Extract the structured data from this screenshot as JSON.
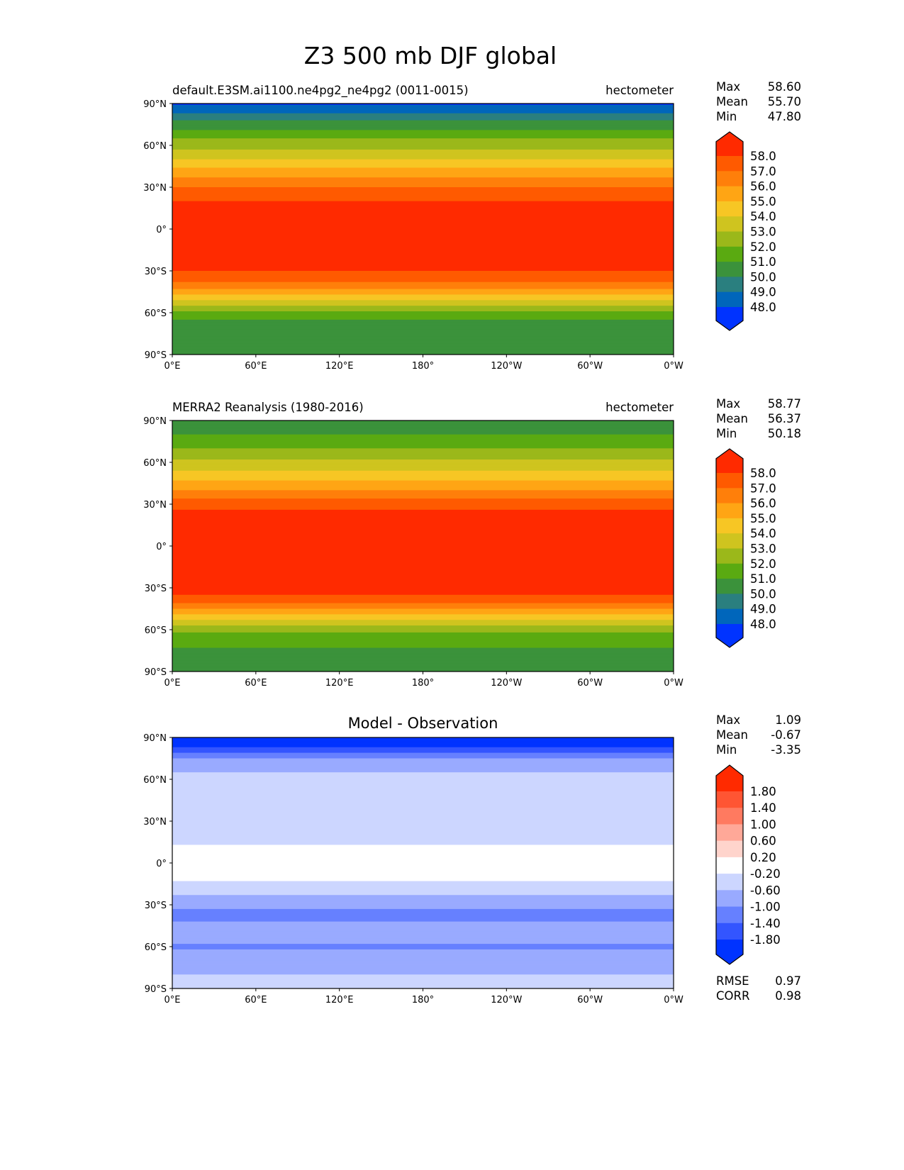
{
  "title": "Z3 500 mb DJF global",
  "chart_data": [
    {
      "type": "heatmap",
      "panel": "model",
      "title_left": "default.E3SM.ai1100.ne4pg2_ne4pg2 (0011-0015)",
      "title_right": "hectometer",
      "stats": [
        {
          "label": "Max",
          "value": "58.60"
        },
        {
          "label": "Mean",
          "value": "55.70"
        },
        {
          "label": "Min",
          "value": "47.80"
        }
      ],
      "levels": [
        "58.0",
        "57.0",
        "56.0",
        "55.0",
        "54.0",
        "53.0",
        "52.0",
        "51.0",
        "50.0",
        "49.0",
        "48.0"
      ],
      "level_values": [
        58,
        57,
        56,
        55,
        54,
        53,
        52,
        51,
        50,
        49,
        48
      ],
      "colors": [
        "#ff2a00",
        "#ff5a00",
        "#ff7f0a",
        "#ffa514",
        "#f7c624",
        "#cfc41f",
        "#9bb81a",
        "#5aaa11",
        "#3b923b",
        "#2a7f7f",
        "#0066bb",
        "#0033ff"
      ],
      "lats": [
        90,
        85,
        80,
        75,
        70,
        65,
        60,
        55,
        50,
        45,
        40,
        35,
        30,
        25,
        20,
        15,
        10,
        5,
        0,
        -5,
        -10,
        -15,
        -20,
        -25,
        -30,
        -35,
        -40,
        -45,
        -50,
        -55,
        -60,
        -65,
        -70,
        -75,
        -80,
        -85,
        -90
      ],
      "zonal_values": [
        47.9,
        48.5,
        49.5,
        50.5,
        51.2,
        52.0,
        52.6,
        53.3,
        54.0,
        54.8,
        55.5,
        56.3,
        57.0,
        57.6,
        58.0,
        58.3,
        58.4,
        58.3,
        58.3,
        58.3,
        58.3,
        58.3,
        58.3,
        58.3,
        58.0,
        57.5,
        56.5,
        55.5,
        54.3,
        53.0,
        51.8,
        51.0,
        50.6,
        50.4,
        50.3,
        50.2,
        50.2
      ]
    },
    {
      "type": "heatmap",
      "panel": "observation",
      "title_left": "MERRA2 Reanalysis (1980-2016)",
      "title_right": "hectometer",
      "stats": [
        {
          "label": "Max",
          "value": "58.77"
        },
        {
          "label": "Mean",
          "value": "56.37"
        },
        {
          "label": "Min",
          "value": "50.18"
        }
      ],
      "levels": [
        "58.0",
        "57.0",
        "56.0",
        "55.0",
        "54.0",
        "53.0",
        "52.0",
        "51.0",
        "50.0",
        "49.0",
        "48.0"
      ],
      "level_values": [
        58,
        57,
        56,
        55,
        54,
        53,
        52,
        51,
        50,
        49,
        48
      ],
      "colors": [
        "#ff2a00",
        "#ff5a00",
        "#ff7f0a",
        "#ffa514",
        "#f7c624",
        "#cfc41f",
        "#9bb81a",
        "#5aaa11",
        "#3b923b",
        "#2a7f7f",
        "#0066bb",
        "#0033ff"
      ],
      "lats": [
        90,
        85,
        80,
        75,
        70,
        65,
        60,
        55,
        50,
        45,
        40,
        35,
        30,
        25,
        20,
        15,
        10,
        5,
        0,
        -5,
        -10,
        -15,
        -20,
        -25,
        -30,
        -35,
        -40,
        -45,
        -50,
        -55,
        -60,
        -65,
        -70,
        -75,
        -80,
        -85,
        -90
      ],
      "zonal_values": [
        50.5,
        50.6,
        51.0,
        51.5,
        52.0,
        52.6,
        53.2,
        53.9,
        54.6,
        55.3,
        56.0,
        56.8,
        57.5,
        58.1,
        58.5,
        58.5,
        58.5,
        58.5,
        58.5,
        58.5,
        58.5,
        58.5,
        58.5,
        58.5,
        58.5,
        58.0,
        57.2,
        56.0,
        54.8,
        53.5,
        52.3,
        51.5,
        51.2,
        50.8,
        50.5,
        50.3,
        50.3
      ]
    },
    {
      "type": "heatmap",
      "panel": "difference",
      "title_center": "Model - Observation",
      "stats": [
        {
          "label": "Max",
          "value": "1.09"
        },
        {
          "label": "Mean",
          "value": "-0.67"
        },
        {
          "label": "Min",
          "value": "-3.35"
        }
      ],
      "extra_stats": [
        {
          "label": "RMSE",
          "value": "0.97"
        },
        {
          "label": "CORR",
          "value": "0.98"
        }
      ],
      "levels": [
        "1.80",
        "1.40",
        "1.00",
        "0.60",
        "0.20",
        "-0.20",
        "-0.60",
        "-1.00",
        "-1.40",
        "-1.80"
      ],
      "level_values": [
        1.8,
        1.4,
        1.0,
        0.6,
        0.2,
        -0.2,
        -0.6,
        -1.0,
        -1.4,
        -1.8
      ],
      "colors": [
        "#ff2a00",
        "#ff5533",
        "#ff7a60",
        "#ffa898",
        "#ffd4cc",
        "#ffffff",
        "#ccd6ff",
        "#99aaff",
        "#6680ff",
        "#3355ff",
        "#0033ff"
      ],
      "lats": [
        90,
        85,
        80,
        75,
        70,
        65,
        60,
        55,
        50,
        45,
        40,
        35,
        30,
        25,
        20,
        15,
        10,
        5,
        0,
        -5,
        -10,
        -15,
        -20,
        -25,
        -30,
        -35,
        -40,
        -45,
        -50,
        -55,
        -60,
        -65,
        -70,
        -75,
        -80,
        -85,
        -90
      ],
      "zonal_values": [
        -2.6,
        -2.1,
        -1.5,
        -1.0,
        -0.8,
        -0.6,
        -0.6,
        -0.6,
        -0.6,
        -0.5,
        -0.5,
        -0.5,
        -0.5,
        -0.5,
        -0.5,
        -0.3,
        -0.1,
        0,
        0,
        0,
        -0.1,
        -0.3,
        -0.5,
        -0.7,
        -0.8,
        -1.1,
        -1.2,
        -0.8,
        -0.6,
        -0.8,
        -1.2,
        -0.8,
        -0.9,
        -0.7,
        -0.6,
        -0.5,
        -0.5
      ]
    }
  ],
  "axes": {
    "lat_ticks": [
      "90°N",
      "60°N",
      "30°N",
      "0°",
      "30°S",
      "60°S",
      "90°S"
    ],
    "lon_ticks": [
      "0°E",
      "60°E",
      "120°E",
      "180°",
      "120°W",
      "60°W",
      "0°W"
    ]
  }
}
